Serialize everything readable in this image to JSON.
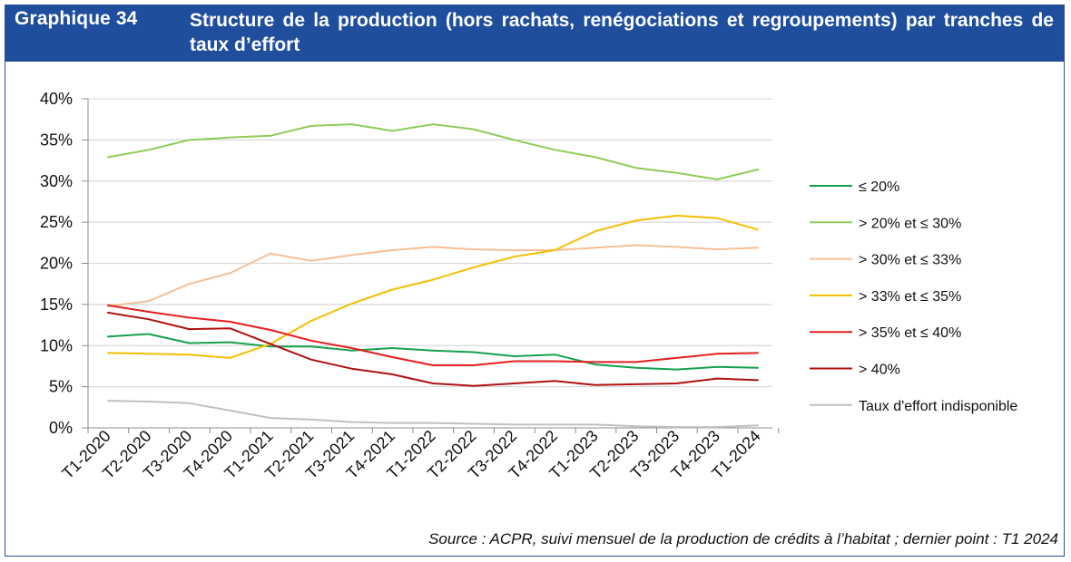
{
  "header": {
    "label": "Graphique 34",
    "title": "Structure de la production (hors rachats, renégociations et regroupements) par tranches de taux d’effort"
  },
  "source": "Source : ACPR, suivi mensuel de la production de crédits à l’habitat ; dernier point : T1 2024",
  "chart_data": {
    "type": "line",
    "categories": [
      "T1-2020",
      "T2-2020",
      "T3-2020",
      "T4-2020",
      "T1-2021",
      "T2-2021",
      "T3-2021",
      "T4-2021",
      "T1-2022",
      "T2-2022",
      "T3-2022",
      "T4-2022",
      "T1-2023",
      "T2-2023",
      "T3-2023",
      "T4-2023",
      "T1-2024"
    ],
    "y_ticks": [
      "0%",
      "5%",
      "10%",
      "15%",
      "20%",
      "25%",
      "30%",
      "35%",
      "40%"
    ],
    "ylim": [
      0,
      40
    ],
    "y_unit": "%",
    "grid": "horizontal",
    "legend_position": "right",
    "series": [
      {
        "name": "≤ 20%",
        "color": "#16a04e",
        "values": [
          11.1,
          11.4,
          10.3,
          10.4,
          9.9,
          9.9,
          9.4,
          9.7,
          9.4,
          9.2,
          8.7,
          8.9,
          7.7,
          7.3,
          7.1,
          7.4,
          7.3
        ]
      },
      {
        "name": "> 20% et ≤ 30%",
        "color": "#8fcc58",
        "values": [
          32.9,
          33.8,
          35.0,
          35.3,
          35.5,
          36.7,
          36.9,
          36.1,
          36.9,
          36.3,
          35.0,
          33.8,
          32.9,
          31.6,
          31.0,
          30.2,
          31.4
        ]
      },
      {
        "name": "> 30% et ≤ 33%",
        "color": "#f5be95",
        "values": [
          14.8,
          15.4,
          17.5,
          18.8,
          21.2,
          20.3,
          21.0,
          21.6,
          22.0,
          21.7,
          21.6,
          21.6,
          21.9,
          22.2,
          22.0,
          21.7,
          21.9
        ]
      },
      {
        "name": "> 33% et ≤ 35%",
        "color": "#f5be00",
        "values": [
          9.1,
          9.0,
          8.9,
          8.5,
          10.2,
          13.0,
          15.1,
          16.8,
          18.0,
          19.5,
          20.8,
          21.6,
          23.9,
          25.2,
          25.8,
          25.5,
          24.1
        ]
      },
      {
        "name": "> 35% et ≤ 40%",
        "color": "#e51e1e",
        "values": [
          14.9,
          14.1,
          13.4,
          12.9,
          11.9,
          10.6,
          9.7,
          8.6,
          7.6,
          7.6,
          8.1,
          8.1,
          8.0,
          8.0,
          8.5,
          9.0,
          9.1
        ]
      },
      {
        "name": "> 40%",
        "color": "#b01010",
        "values": [
          14.0,
          13.2,
          12.0,
          12.1,
          10.2,
          8.3,
          7.2,
          6.5,
          5.4,
          5.1,
          5.4,
          5.7,
          5.2,
          5.3,
          5.4,
          6.0,
          5.8
        ]
      },
      {
        "name": "Taux d'effort indisponible",
        "color": "#c0c0c0",
        "values": [
          3.3,
          3.2,
          3.0,
          2.1,
          1.2,
          1.0,
          0.7,
          0.6,
          0.6,
          0.5,
          0.4,
          0.4,
          0.4,
          0.2,
          0.1,
          0.1,
          0.3
        ]
      }
    ]
  }
}
